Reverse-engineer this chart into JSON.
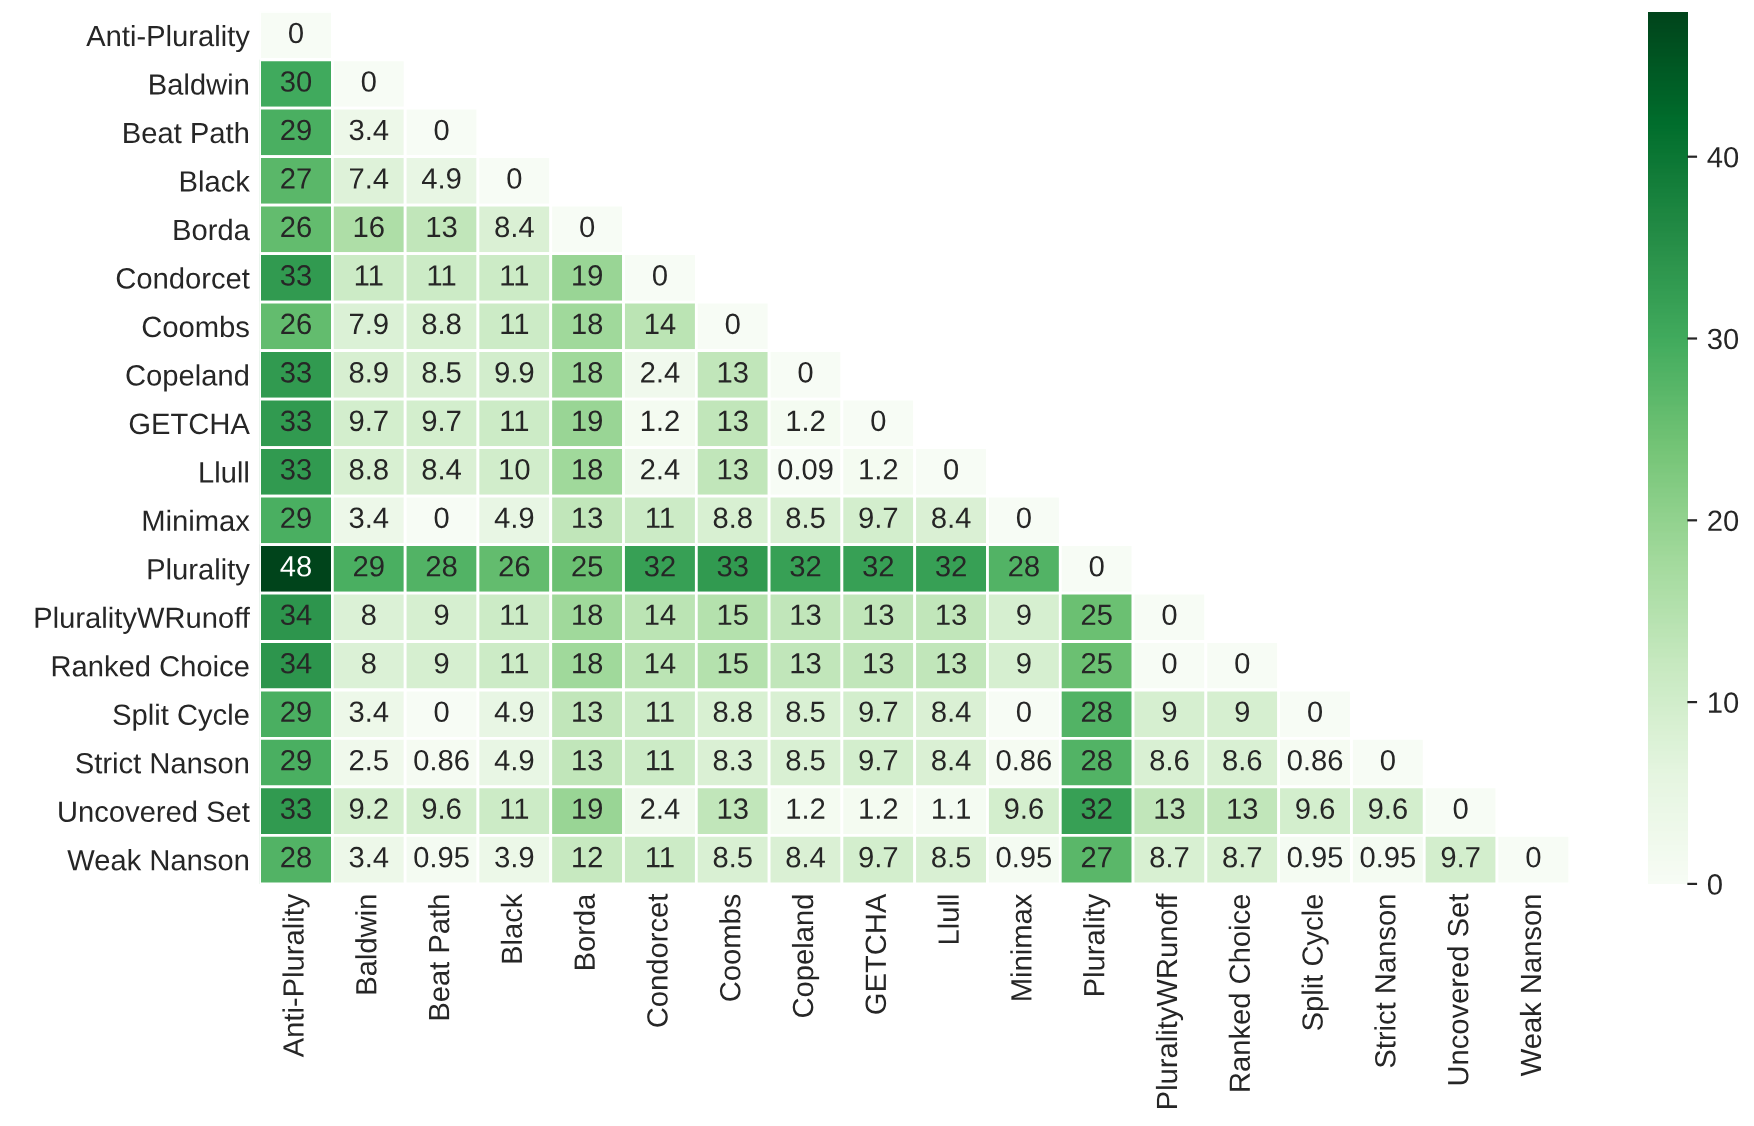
{
  "chart_data": {
    "type": "heatmap",
    "categories": [
      "Anti-Plurality",
      "Baldwin",
      "Beat Path",
      "Black",
      "Borda",
      "Condorcet",
      "Coombs",
      "Copeland",
      "GETCHA",
      "Llull",
      "Minimax",
      "Plurality",
      "PluralityWRunoff",
      "Ranked Choice",
      "Split Cycle",
      "Strict Nanson",
      "Uncovered Set",
      "Weak Nanson"
    ],
    "y_categories": [
      "Anti-Plurality",
      "Baldwin",
      "Beat Path",
      "Black",
      "Borda",
      "Condorcet",
      "Coombs",
      "Copeland",
      "GETCHA",
      "Llull",
      "Minimax",
      "Plurality",
      "PluralityWRunoff",
      "Ranked Choice",
      "Split Cycle",
      "Strict Nanson",
      "Uncovered Set",
      "Weak Nanson"
    ],
    "cells": [
      [
        0,
        null,
        null,
        null,
        null,
        null,
        null,
        null,
        null,
        null,
        null,
        null,
        null,
        null,
        null,
        null,
        null,
        null
      ],
      [
        30,
        0,
        null,
        null,
        null,
        null,
        null,
        null,
        null,
        null,
        null,
        null,
        null,
        null,
        null,
        null,
        null,
        null
      ],
      [
        29,
        3.4,
        0,
        null,
        null,
        null,
        null,
        null,
        null,
        null,
        null,
        null,
        null,
        null,
        null,
        null,
        null,
        null
      ],
      [
        27,
        7.4,
        4.9,
        0,
        null,
        null,
        null,
        null,
        null,
        null,
        null,
        null,
        null,
        null,
        null,
        null,
        null,
        null
      ],
      [
        26,
        16,
        13,
        8.4,
        0,
        null,
        null,
        null,
        null,
        null,
        null,
        null,
        null,
        null,
        null,
        null,
        null,
        null
      ],
      [
        33,
        11,
        11,
        11,
        19,
        0,
        null,
        null,
        null,
        null,
        null,
        null,
        null,
        null,
        null,
        null,
        null,
        null
      ],
      [
        26,
        7.9,
        8.8,
        11,
        18,
        14,
        0,
        null,
        null,
        null,
        null,
        null,
        null,
        null,
        null,
        null,
        null,
        null
      ],
      [
        33,
        8.9,
        8.5,
        9.9,
        18,
        2.4,
        13,
        0,
        null,
        null,
        null,
        null,
        null,
        null,
        null,
        null,
        null,
        null
      ],
      [
        33,
        9.7,
        9.7,
        11,
        19,
        1.2,
        13,
        1.2,
        0,
        null,
        null,
        null,
        null,
        null,
        null,
        null,
        null,
        null
      ],
      [
        33,
        8.8,
        8.4,
        10,
        18,
        2.4,
        13,
        0.09,
        1.2,
        0,
        null,
        null,
        null,
        null,
        null,
        null,
        null,
        null
      ],
      [
        29,
        3.4,
        0,
        4.9,
        13,
        11,
        8.8,
        8.5,
        9.7,
        8.4,
        0,
        null,
        null,
        null,
        null,
        null,
        null,
        null
      ],
      [
        48,
        29,
        28,
        26,
        25,
        32,
        33,
        32,
        32,
        32,
        28,
        0,
        null,
        null,
        null,
        null,
        null,
        null
      ],
      [
        34,
        8,
        9,
        11,
        18,
        14,
        15,
        13,
        13,
        13,
        9,
        25,
        0,
        null,
        null,
        null,
        null,
        null
      ],
      [
        34,
        8,
        9,
        11,
        18,
        14,
        15,
        13,
        13,
        13,
        9,
        25,
        0,
        0,
        null,
        null,
        null,
        null
      ],
      [
        29,
        3.4,
        0,
        4.9,
        13,
        11,
        8.8,
        8.5,
        9.7,
        8.4,
        0,
        28,
        9,
        9,
        0,
        null,
        null,
        null
      ],
      [
        29,
        2.5,
        0.86,
        4.9,
        13,
        11,
        8.3,
        8.5,
        9.7,
        8.4,
        0.86,
        28,
        8.6,
        8.6,
        0.86,
        0,
        null,
        null
      ],
      [
        33,
        9.2,
        9.6,
        11,
        19,
        2.4,
        13,
        1.2,
        1.2,
        1.1,
        9.6,
        32,
        13,
        13,
        9.6,
        9.6,
        0,
        null
      ],
      [
        28,
        3.4,
        0.95,
        3.9,
        12,
        11,
        8.5,
        8.4,
        9.7,
        8.5,
        0.95,
        27,
        8.7,
        8.7,
        0.95,
        0.95,
        9.7,
        0
      ]
    ],
    "data_labels": true,
    "clim": [
      0,
      48
    ],
    "cticks": [
      0,
      10,
      20,
      30,
      40
    ]
  }
}
